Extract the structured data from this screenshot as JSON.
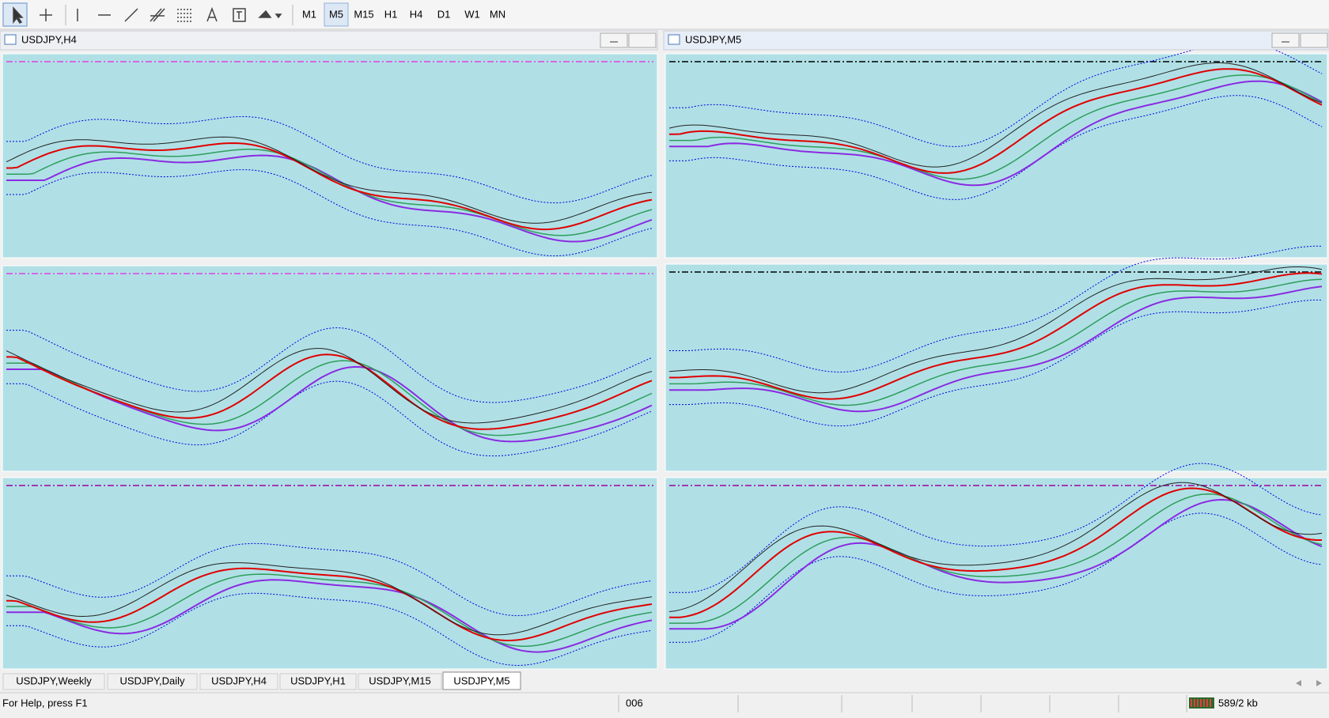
{
  "toolbar": {
    "timeframes": [
      "M1",
      "M5",
      "M15",
      "H1",
      "H4",
      "D1",
      "W1",
      "MN"
    ]
  },
  "windows": [
    {
      "title": "USDJPY,H4"
    },
    {
      "title": "USDJPY,M5"
    }
  ],
  "tabs": [
    "USDJPY,Weekly",
    "USDJPY,Daily",
    "USDJPY,H4",
    "USDJPY,H1",
    "USDJPY,M15",
    "USDJPY,M5"
  ],
  "status": {
    "help": "For Help, press F1",
    "field": "006",
    "traffic": "589/2 kb"
  }
}
